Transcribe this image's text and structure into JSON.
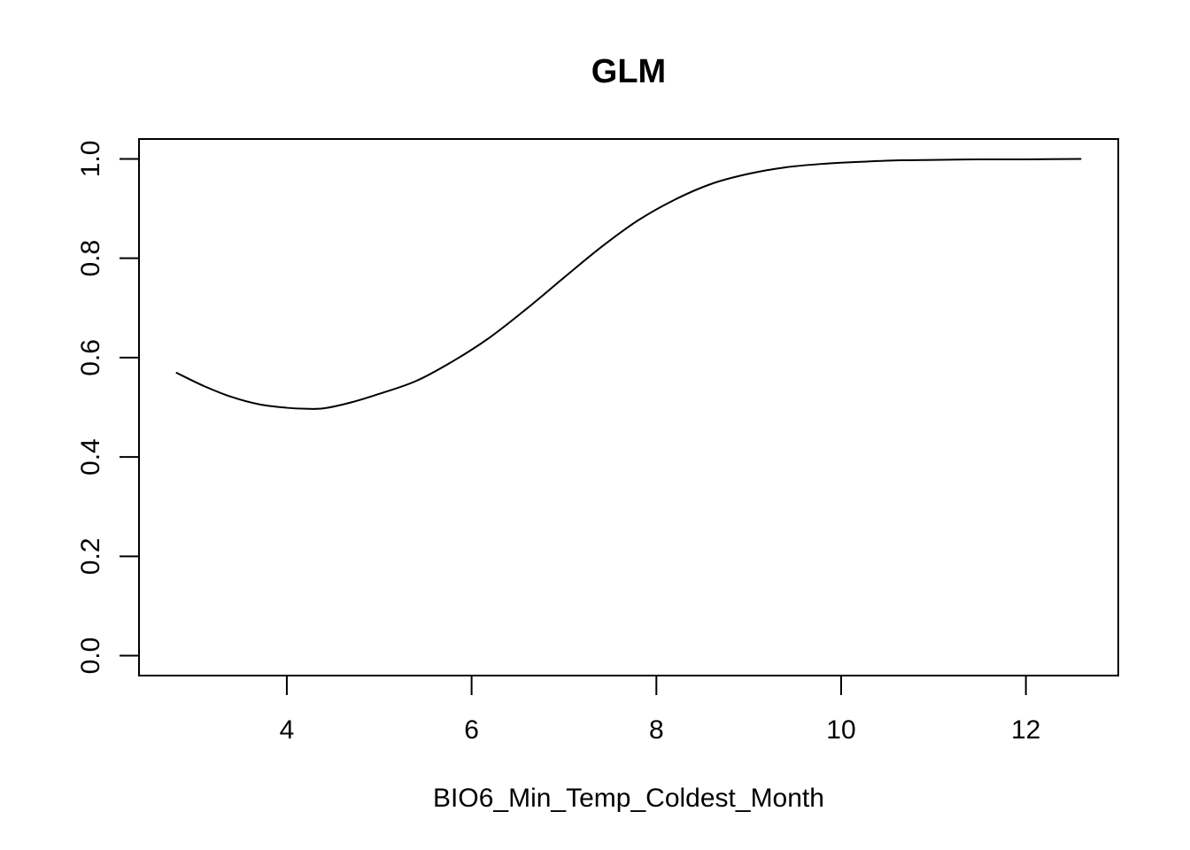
{
  "chart_data": {
    "type": "line",
    "title": "GLM",
    "xlabel": "BIO6_Min_Temp_Coldest_Month",
    "ylabel": "",
    "xlim": [
      2.4,
      13.0
    ],
    "ylim": [
      -0.04,
      1.04
    ],
    "xticks": [
      4,
      6,
      8,
      10,
      12
    ],
    "xtick_labels": [
      "4",
      "6",
      "8",
      "10",
      "12"
    ],
    "yticks": [
      0.0,
      0.2,
      0.4,
      0.6,
      0.8,
      1.0
    ],
    "ytick_labels": [
      "0.0",
      "0.2",
      "0.4",
      "0.6",
      "0.8",
      "1.0"
    ],
    "grid": false,
    "legend": "none",
    "series": [
      {
        "x": [
          2.8,
          3.1,
          3.4,
          3.7,
          4.0,
          4.2,
          4.4,
          4.7,
          5.0,
          5.4,
          5.8,
          6.2,
          6.6,
          7.0,
          7.4,
          7.8,
          8.2,
          8.6,
          9.0,
          9.4,
          9.8,
          10.2,
          10.6,
          11.0,
          11.5,
          12.0,
          12.6
        ],
        "y": [
          0.57,
          0.543,
          0.521,
          0.506,
          0.499,
          0.497,
          0.498,
          0.51,
          0.527,
          0.553,
          0.593,
          0.641,
          0.699,
          0.761,
          0.822,
          0.876,
          0.918,
          0.95,
          0.97,
          0.983,
          0.99,
          0.994,
          0.997,
          0.998,
          0.999,
          0.999,
          1.0
        ]
      }
    ]
  }
}
